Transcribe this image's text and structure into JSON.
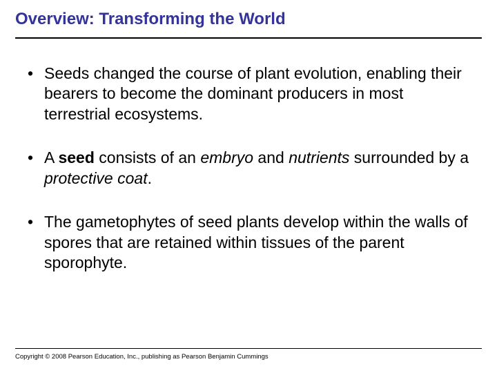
{
  "title": "Overview: Transforming the World",
  "title_color": "#333399",
  "title_fontsize": 24,
  "body_fontsize": 23,
  "bullets": [
    {
      "plain1": "Seeds changed the course of plant evolution, enabling their bearers to become the dominant producers in most terrestrial ecosystems."
    },
    {
      "a": "A ",
      "b": "seed",
      "c": " consists of an ",
      "d": "embryo",
      "e": " and ",
      "f": "nutrients",
      "g": " surrounded by a ",
      "h": "protective coat",
      "i": "."
    },
    {
      "plain1": "The gametophytes of seed plants develop within the walls of spores that are retained within tissues of the parent sporophyte."
    }
  ],
  "copyright": "Copyright © 2008 Pearson Education, Inc., publishing as Pearson Benjamin Cummings",
  "rule_color": "#000000",
  "background_color": "#ffffff"
}
